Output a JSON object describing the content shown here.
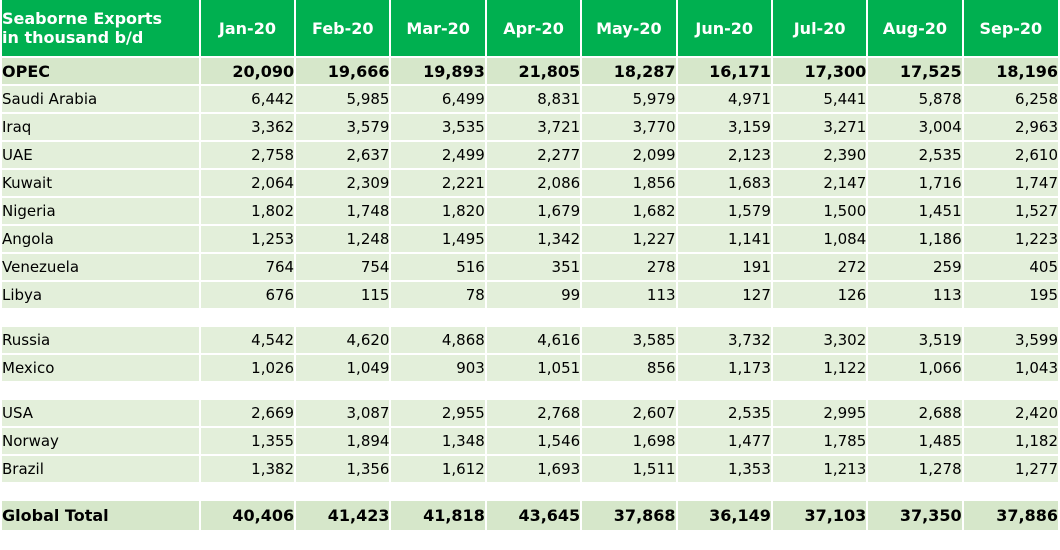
{
  "chart_data": {
    "type": "table",
    "title": "Seaborne Exports in thousand b/d",
    "title_lines": [
      "Seaborne Exports",
      "in thousand b/d"
    ],
    "columns": [
      "Jan-20",
      "Feb-20",
      "Mar-20",
      "Apr-20",
      "May-20",
      "Jun-20",
      "Jul-20",
      "Aug-20",
      "Sep-20"
    ],
    "groups": [
      [
        {
          "label": "OPEC",
          "bold": true,
          "values": [
            "20,090",
            "19,666",
            "19,893",
            "21,805",
            "18,287",
            "16,171",
            "17,300",
            "17,525",
            "18,196"
          ]
        },
        {
          "label": "Saudi Arabia",
          "values": [
            "6,442",
            "5,985",
            "6,499",
            "8,831",
            "5,979",
            "4,971",
            "5,441",
            "5,878",
            "6,258"
          ]
        },
        {
          "label": "Iraq",
          "values": [
            "3,362",
            "3,579",
            "3,535",
            "3,721",
            "3,770",
            "3,159",
            "3,271",
            "3,004",
            "2,963"
          ]
        },
        {
          "label": "UAE",
          "values": [
            "2,758",
            "2,637",
            "2,499",
            "2,277",
            "2,099",
            "2,123",
            "2,390",
            "2,535",
            "2,610"
          ]
        },
        {
          "label": "Kuwait",
          "values": [
            "2,064",
            "2,309",
            "2,221",
            "2,086",
            "1,856",
            "1,683",
            "2,147",
            "1,716",
            "1,747"
          ]
        },
        {
          "label": "Nigeria",
          "values": [
            "1,802",
            "1,748",
            "1,820",
            "1,679",
            "1,682",
            "1,579",
            "1,500",
            "1,451",
            "1,527"
          ]
        },
        {
          "label": "Angola",
          "values": [
            "1,253",
            "1,248",
            "1,495",
            "1,342",
            "1,227",
            "1,141",
            "1,084",
            "1,186",
            "1,223"
          ]
        },
        {
          "label": "Venezuela",
          "values": [
            "764",
            "754",
            "516",
            "351",
            "278",
            "191",
            "272",
            "259",
            "405"
          ]
        },
        {
          "label": "Libya",
          "values": [
            "676",
            "115",
            "78",
            "99",
            "113",
            "127",
            "126",
            "113",
            "195"
          ]
        }
      ],
      [
        {
          "label": "Russia",
          "values": [
            "4,542",
            "4,620",
            "4,868",
            "4,616",
            "3,585",
            "3,732",
            "3,302",
            "3,519",
            "3,599"
          ]
        },
        {
          "label": "Mexico",
          "values": [
            "1,026",
            "1,049",
            "903",
            "1,051",
            "856",
            "1,173",
            "1,122",
            "1,066",
            "1,043"
          ]
        }
      ],
      [
        {
          "label": "USA",
          "values": [
            "2,669",
            "3,087",
            "2,955",
            "2,768",
            "2,607",
            "2,535",
            "2,995",
            "2,688",
            "2,420"
          ]
        },
        {
          "label": "Norway",
          "values": [
            "1,355",
            "1,894",
            "1,348",
            "1,546",
            "1,698",
            "1,477",
            "1,785",
            "1,485",
            "1,182"
          ]
        },
        {
          "label": "Brazil",
          "values": [
            "1,382",
            "1,356",
            "1,612",
            "1,693",
            "1,511",
            "1,353",
            "1,213",
            "1,278",
            "1,277"
          ]
        }
      ],
      [
        {
          "label": "Global Total",
          "bold": true,
          "values": [
            "40,406",
            "41,423",
            "41,818",
            "43,645",
            "37,868",
            "36,149",
            "37,103",
            "37,350",
            "37,886"
          ]
        }
      ]
    ],
    "colors": {
      "header_bg": "#00b050",
      "header_text": "#ffffff",
      "row_bg": "#e3efda",
      "summary_bg": "#d6e7ca"
    }
  }
}
